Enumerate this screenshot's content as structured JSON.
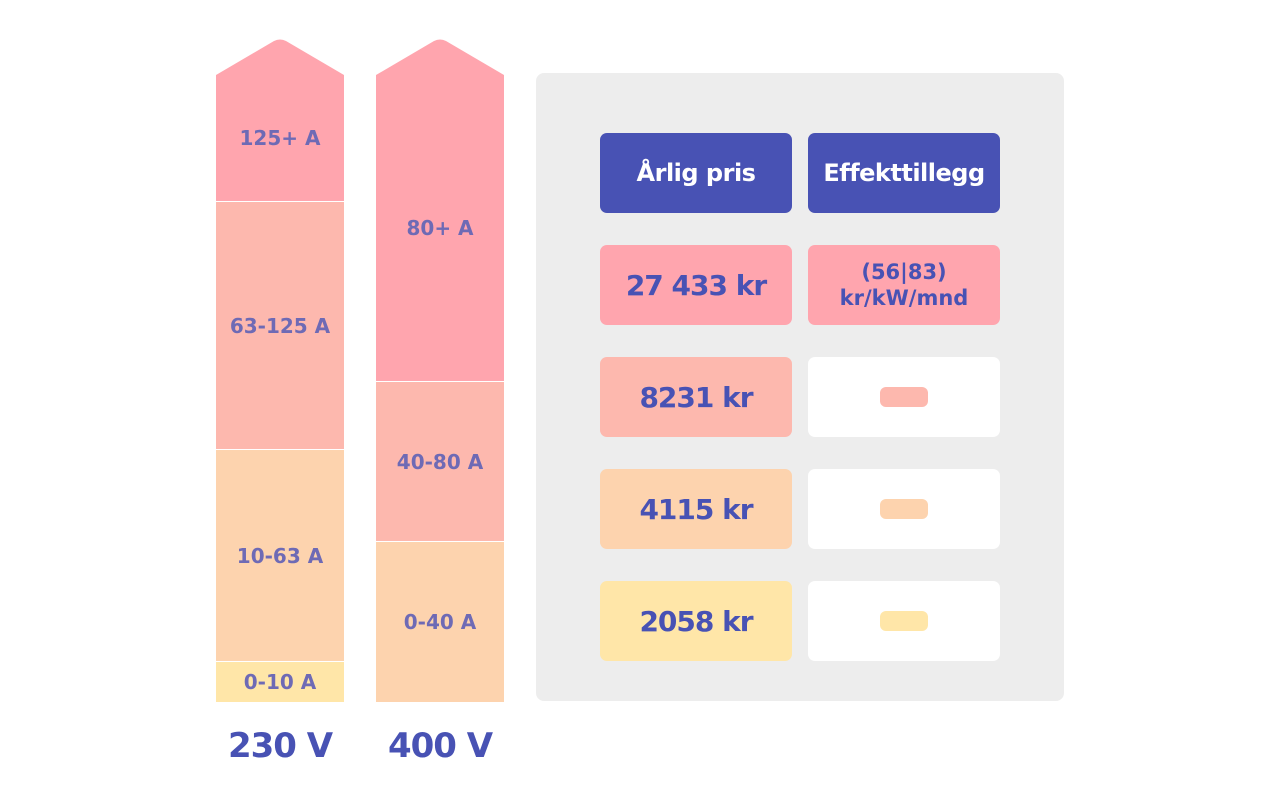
{
  "colors": {
    "pink": "#FFA5AE",
    "salmon": "#FDB8AE",
    "peach": "#FDD3AE",
    "yellow": "#FFE6A8",
    "blue": "#4852B4",
    "label_text": "#6E6AB5",
    "panel": "#EDEDED"
  },
  "columns": [
    {
      "voltage": "230 V",
      "segments": [
        "125+ A",
        "63-125 A",
        "10-63 A",
        "0-10 A"
      ]
    },
    {
      "voltage": "400 V",
      "segments": [
        "80+ A",
        "40-80 A",
        "0-40 A"
      ]
    }
  ],
  "table": {
    "headers": [
      "Årlig pris",
      "Effekttillegg"
    ],
    "rows": [
      {
        "price": "27 433 kr",
        "fee_line1": "(56|83)",
        "fee_line2": "kr/kW/mnd"
      },
      {
        "price": "8231 kr",
        "fee": "dash"
      },
      {
        "price": "4115 kr",
        "fee": "dash"
      },
      {
        "price": "2058 kr",
        "fee": "dash"
      }
    ]
  }
}
